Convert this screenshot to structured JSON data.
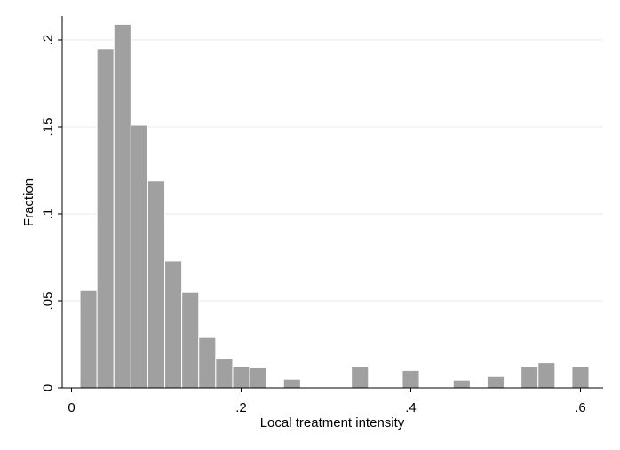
{
  "chart_data": {
    "type": "bar",
    "subtype": "histogram",
    "xlabel": "Local treatment intensity",
    "ylabel": "Fraction",
    "xlim": [
      0,
      0.62
    ],
    "ylim": [
      0,
      0.21
    ],
    "bin_width": 0.02,
    "x_ticks": [
      {
        "value": 0,
        "label": "0"
      },
      {
        "value": 0.2,
        "label": ".2"
      },
      {
        "value": 0.4,
        "label": ".4"
      },
      {
        "value": 0.6,
        "label": ".6"
      }
    ],
    "y_ticks": [
      {
        "value": 0,
        "label": "0"
      },
      {
        "value": 0.05,
        "label": ".05"
      },
      {
        "value": 0.1,
        "label": ".1"
      },
      {
        "value": 0.15,
        "label": ".15"
      },
      {
        "value": 0.2,
        "label": ".2"
      }
    ],
    "grid": "horizontal",
    "bar_color": "#a0a0a0",
    "bar_edge_color": "#ffffff",
    "gridline_color": "#e8e8e8",
    "bins": [
      {
        "x0": 0.01,
        "value": 0.056
      },
      {
        "x0": 0.03,
        "value": 0.195
      },
      {
        "x0": 0.05,
        "value": 0.209
      },
      {
        "x0": 0.07,
        "value": 0.151
      },
      {
        "x0": 0.09,
        "value": 0.119
      },
      {
        "x0": 0.11,
        "value": 0.073
      },
      {
        "x0": 0.13,
        "value": 0.055
      },
      {
        "x0": 0.15,
        "value": 0.029
      },
      {
        "x0": 0.17,
        "value": 0.017
      },
      {
        "x0": 0.19,
        "value": 0.012
      },
      {
        "x0": 0.21,
        "value": 0.0115
      },
      {
        "x0": 0.25,
        "value": 0.005
      },
      {
        "x0": 0.33,
        "value": 0.0125
      },
      {
        "x0": 0.39,
        "value": 0.01
      },
      {
        "x0": 0.45,
        "value": 0.0045
      },
      {
        "x0": 0.49,
        "value": 0.0065
      },
      {
        "x0": 0.53,
        "value": 0.0125
      },
      {
        "x0": 0.55,
        "value": 0.0145
      },
      {
        "x0": 0.59,
        "value": 0.0125
      }
    ]
  }
}
